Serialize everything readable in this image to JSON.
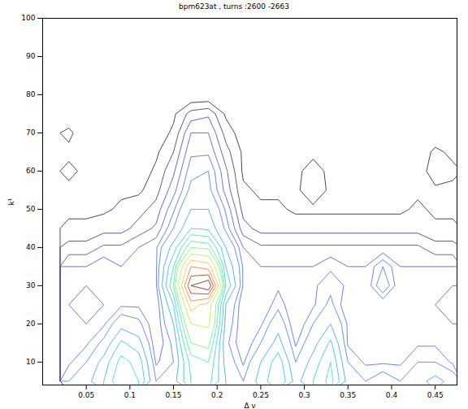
{
  "chart_data": {
    "type": "contour",
    "title": "bpm623at , turns :2600 -2663",
    "x_label": "Δ ν",
    "y_label": "k¹",
    "xlim": [
      0,
      0.475
    ],
    "ylim": [
      4,
      100
    ],
    "xticks": [
      0.05,
      0.1,
      0.15,
      0.2,
      0.25,
      0.3,
      0.35,
      0.4,
      0.45
    ],
    "yticks": [
      10,
      20,
      30,
      40,
      50,
      60,
      70,
      80,
      90,
      100
    ],
    "grid": false,
    "x": [
      0.03,
      0.05,
      0.07,
      0.09,
      0.11,
      0.13,
      0.15,
      0.17,
      0.19,
      0.21,
      0.23,
      0.25,
      0.27,
      0.29,
      0.31,
      0.33,
      0.35,
      0.37,
      0.39,
      0.41,
      0.43,
      0.45,
      0.47
    ],
    "y": [
      5,
      10,
      15,
      20,
      25,
      30,
      35,
      40,
      45,
      50,
      55,
      60,
      65,
      70,
      75,
      80,
      85,
      90,
      95,
      100
    ],
    "levels": [
      0.25,
      0.5,
      0.75,
      1,
      1.25,
      1.5,
      2,
      2.5,
      3,
      3.5,
      4,
      5,
      6,
      7,
      8,
      9
    ],
    "z": [
      [
        1.5,
        1.8,
        2.5,
        3.5,
        3.0,
        1.5,
        1.8,
        3.0,
        3.2,
        2.0,
        1.5,
        2.2,
        3.0,
        1.8,
        2.5,
        3.2,
        1.8,
        1.5,
        1.8,
        1.5,
        1.8,
        2.2,
        1.8
      ],
      [
        1.2,
        1.5,
        2.2,
        3.2,
        2.8,
        1.2,
        1.5,
        3.2,
        3.5,
        1.8,
        1.2,
        2.0,
        2.8,
        1.5,
        2.2,
        3.0,
        1.5,
        1.2,
        1.2,
        1.2,
        1.5,
        1.5,
        1.2
      ],
      [
        1.0,
        1.2,
        1.6,
        2.6,
        2.2,
        1.0,
        1.6,
        4.0,
        4.2,
        1.6,
        1.0,
        1.5,
        2.2,
        1.2,
        1.8,
        2.6,
        1.2,
        1.0,
        1.0,
        1.0,
        1.2,
        1.2,
        1.0
      ],
      [
        1.2,
        1.0,
        1.2,
        1.8,
        1.6,
        1.0,
        2.0,
        5.0,
        5.2,
        1.8,
        1.0,
        1.2,
        1.8,
        1.0,
        1.5,
        2.0,
        1.2,
        1.0,
        1.2,
        1.0,
        1.0,
        1.2,
        1.0
      ],
      [
        1.0,
        0.8,
        1.0,
        1.2,
        1.2,
        1.0,
        2.5,
        6.5,
        5.5,
        2.0,
        1.0,
        1.0,
        1.4,
        1.0,
        1.2,
        1.6,
        1.0,
        1.0,
        1.0,
        1.0,
        1.0,
        1.0,
        0.8
      ],
      [
        1.2,
        1.0,
        1.0,
        1.2,
        1.0,
        1.2,
        3.5,
        9.0,
        10.0,
        3.0,
        1.2,
        1.0,
        1.2,
        1.2,
        1.2,
        1.4,
        1.2,
        1.0,
        1.8,
        1.0,
        1.0,
        1.2,
        1.0
      ],
      [
        1.0,
        1.0,
        1.2,
        1.0,
        1.2,
        1.2,
        3.0,
        7.0,
        6.5,
        2.5,
        1.2,
        1.0,
        1.0,
        1.0,
        1.0,
        1.2,
        1.0,
        1.0,
        1.5,
        1.0,
        1.0,
        1.0,
        1.0
      ],
      [
        0.6,
        0.6,
        0.8,
        0.8,
        1.0,
        1.2,
        2.2,
        4.0,
        3.8,
        2.0,
        1.0,
        0.8,
        0.8,
        0.8,
        0.8,
        0.8,
        0.8,
        0.8,
        0.8,
        0.8,
        0.8,
        0.6,
        0.6
      ],
      [
        0.3,
        0.3,
        0.4,
        0.4,
        0.6,
        0.8,
        1.5,
        2.5,
        2.4,
        1.4,
        0.6,
        0.4,
        0.4,
        0.4,
        0.4,
        0.4,
        0.4,
        0.4,
        0.4,
        0.4,
        0.4,
        0.3,
        0.3
      ],
      [
        0.2,
        0.2,
        0.2,
        0.3,
        0.4,
        0.6,
        1.2,
        2.0,
        2.0,
        1.2,
        0.4,
        0.3,
        0.3,
        0.2,
        0.2,
        0.2,
        0.2,
        0.2,
        0.2,
        0.2,
        0.3,
        0.2,
        0.2
      ],
      [
        0.2,
        0.2,
        0.2,
        0.2,
        0.2,
        0.4,
        0.9,
        1.6,
        1.6,
        0.9,
        0.3,
        0.2,
        0.2,
        0.2,
        0.4,
        0.2,
        0.2,
        0.2,
        0.2,
        0.2,
        0.2,
        0.2,
        0.2
      ],
      [
        0.3,
        0.2,
        0.2,
        0.1,
        0.1,
        0.3,
        0.7,
        1.4,
        1.5,
        0.8,
        0.2,
        0.1,
        0.1,
        0.1,
        0.5,
        0.1,
        0.1,
        0.1,
        0.1,
        0.1,
        0.1,
        0.4,
        0.3
      ],
      [
        0.2,
        0.1,
        0.1,
        0.1,
        0.1,
        0.2,
        0.5,
        1.2,
        1.2,
        0.6,
        0.2,
        0.1,
        0.1,
        0.1,
        0.1,
        0.1,
        0.1,
        0.1,
        0.1,
        0.1,
        0.1,
        0.3,
        0.2
      ],
      [
        0.3,
        0.1,
        0.1,
        0.1,
        0.1,
        0.1,
        0.3,
        1.0,
        1.0,
        0.4,
        0.1,
        0.1,
        0.1,
        0.1,
        0.1,
        0.1,
        0.1,
        0.1,
        0.1,
        0.1,
        0.1,
        0.1,
        0.1
      ],
      [
        0.1,
        0.0,
        0.0,
        0.0,
        0.0,
        0.1,
        0.2,
        0.6,
        0.7,
        0.2,
        0.0,
        0.0,
        0.0,
        0.0,
        0.0,
        0.0,
        0.0,
        0.0,
        0.0,
        0.0,
        0.0,
        0.0,
        0.0
      ],
      [
        0,
        0,
        0,
        0,
        0,
        0,
        0,
        0,
        0,
        0,
        0,
        0,
        0,
        0,
        0,
        0,
        0,
        0,
        0,
        0,
        0,
        0,
        0
      ],
      [
        0,
        0,
        0,
        0,
        0,
        0,
        0,
        0,
        0,
        0,
        0,
        0,
        0,
        0,
        0,
        0,
        0,
        0,
        0,
        0,
        0,
        0,
        0
      ],
      [
        0,
        0,
        0,
        0,
        0,
        0,
        0,
        0,
        0,
        0,
        0,
        0,
        0,
        0,
        0,
        0,
        0,
        0,
        0,
        0,
        0,
        0,
        0
      ],
      [
        0,
        0,
        0,
        0,
        0,
        0,
        0,
        0,
        0,
        0,
        0,
        0,
        0,
        0,
        0,
        0,
        0,
        0,
        0,
        0,
        0,
        0,
        0
      ],
      [
        0,
        0,
        0,
        0,
        0,
        0,
        0,
        0,
        0,
        0,
        0,
        0,
        0,
        0,
        0,
        0,
        0,
        0,
        0,
        0,
        0,
        0,
        0
      ]
    ]
  }
}
